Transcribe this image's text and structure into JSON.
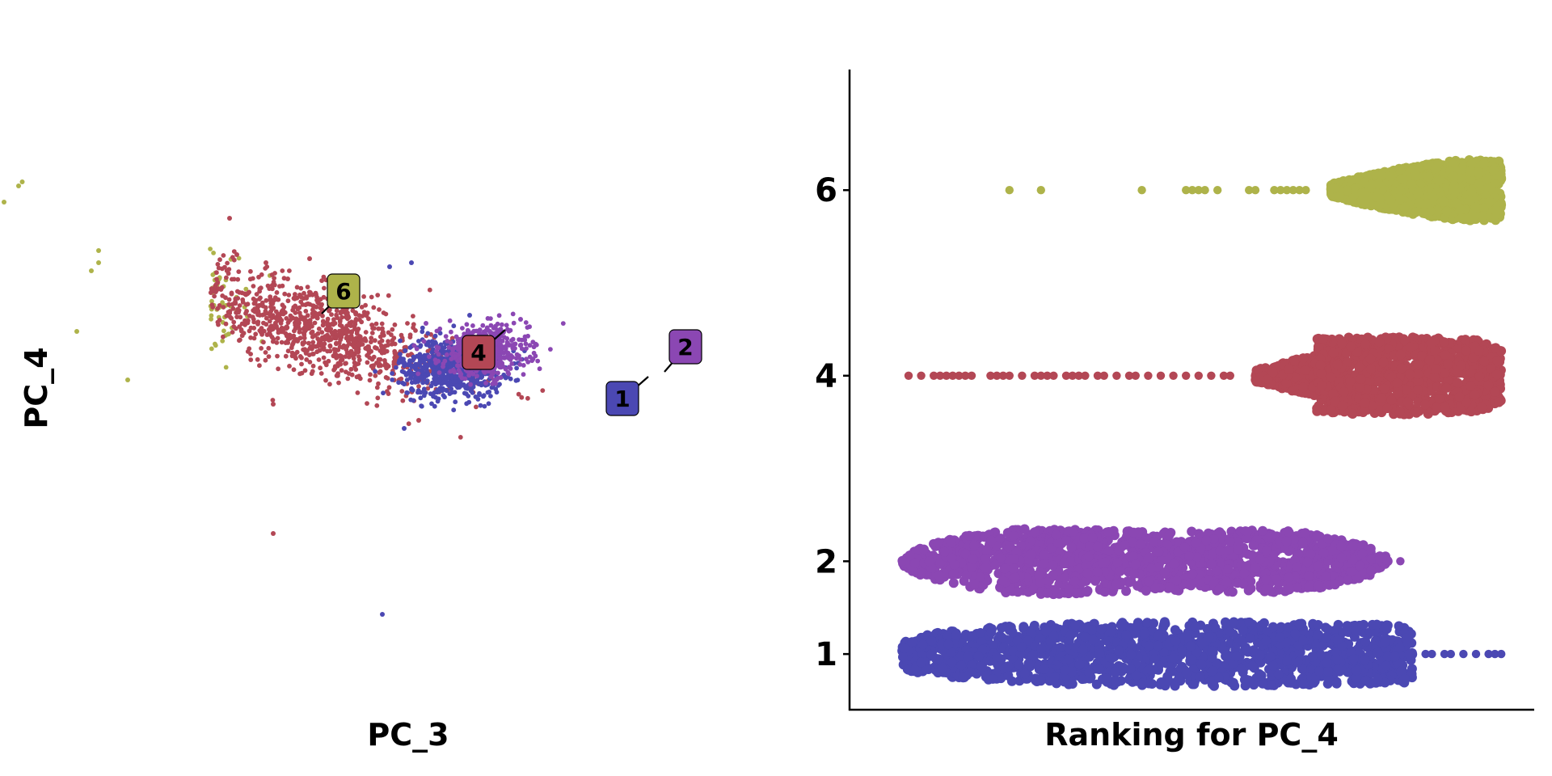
{
  "chart_data": [
    {
      "type": "scatter",
      "title": "",
      "xlabel": "PC_3",
      "ylabel": "PC_4",
      "axes_visible": false,
      "grid": false,
      "legend": "none",
      "series": [
        {
          "name": "6",
          "color": "#aeb34a",
          "label": "6",
          "n": 560,
          "center": [
            -3.35,
            0.95
          ],
          "spread": [
            0.5,
            0.33
          ],
          "outliers": [
            [
              -6.4,
              2.8
            ],
            [
              -5.7,
              2.2
            ],
            [
              -5.5,
              2.3
            ],
            [
              -5.3,
              2.5
            ],
            [
              -5.25,
              2.55
            ],
            [
              -4.2,
              1.7
            ],
            [
              -4.2,
              1.55
            ],
            [
              -4.3,
              1.45
            ],
            [
              -4.5,
              0.7
            ],
            [
              -3.8,
              0.1
            ]
          ]
        },
        {
          "name": "4",
          "color": "#b34755",
          "label": "4",
          "n": 1000,
          "center": [
            -1.3,
            0.75
          ],
          "spread": [
            1.0,
            0.27
          ],
          "outliers": [
            [
              -6.5,
              2.9
            ],
            [
              -2.4,
              2.1
            ],
            [
              -2.3,
              1.65
            ],
            [
              -1.9,
              1.55
            ],
            [
              -1.3,
              1.6
            ],
            [
              -1.6,
              1.35
            ],
            [
              -1.8,
              -0.2
            ],
            [
              -1.8,
              -1.8
            ],
            [
              -0.4,
              0.5
            ],
            [
              0.2,
              -0.4
            ]
          ]
        },
        {
          "name": "1",
          "color": "#4b48b3",
          "label": "1",
          "n": 700,
          "center": [
            0.65,
            0.25
          ],
          "spread": [
            0.35,
            0.18
          ],
          "outliers": [
            [
              -0.2,
              1.5
            ],
            [
              0.1,
              1.55
            ],
            [
              0.0,
              0.05
            ],
            [
              0.0,
              -0.5
            ],
            [
              0.2,
              0.15
            ],
            [
              0.9,
              0.9
            ],
            [
              -0.3,
              -2.8
            ]
          ]
        },
        {
          "name": "2",
          "color": "#8b47b3",
          "label": "2",
          "n": 520,
          "center": [
            1.1,
            0.45
          ],
          "spread": [
            0.3,
            0.16
          ],
          "outliers": [
            [
              1.6,
              0.85
            ],
            [
              0.3,
              0.8
            ]
          ]
        }
      ]
    },
    {
      "type": "scatter",
      "title": "",
      "xlabel": "Ranking for PC_4",
      "ylabel": "",
      "y_categories": [
        "1",
        "2",
        "4",
        "6"
      ],
      "y_ticks": [
        "1",
        "2",
        "4",
        "6"
      ],
      "ylim": [
        0.4,
        7.3
      ],
      "xlim": [
        0,
        1
      ],
      "x_ticks_shown": false,
      "grid": false,
      "legend": "none",
      "series": [
        {
          "name": "6",
          "color": "#aeb34a",
          "y": 6,
          "body_range": [
            0.72,
            0.99
          ],
          "max_halfwidth": 0.36,
          "sparse_x": [
            0.21,
            0.26,
            0.42,
            0.49,
            0.5,
            0.51,
            0.52,
            0.54,
            0.59,
            0.6,
            0.63,
            0.64,
            0.65,
            0.66,
            0.67,
            0.68
          ]
        },
        {
          "name": "4",
          "color": "#b34755",
          "y": 4,
          "body_range": [
            0.6,
            0.99
          ],
          "max_halfwidth": 0.42,
          "sparse_x": [
            0.05,
            0.07,
            0.09,
            0.1,
            0.11,
            0.12,
            0.13,
            0.14,
            0.15,
            0.18,
            0.19,
            0.2,
            0.21,
            0.23,
            0.25,
            0.26,
            0.27,
            0.28,
            0.3,
            0.31,
            0.32,
            0.33,
            0.35,
            0.36,
            0.38,
            0.4,
            0.41,
            0.43,
            0.45,
            0.47,
            0.49,
            0.51,
            0.53,
            0.55,
            0.56
          ]
        },
        {
          "name": "2",
          "color": "#8b47b3",
          "y": 2,
          "body_range": [
            0.04,
            0.81
          ],
          "max_halfwidth": 0.42,
          "sparse_x": [
            0.83
          ]
        },
        {
          "name": "1",
          "color": "#4b48b3",
          "y": 1,
          "body_range": [
            0.04,
            0.85
          ],
          "max_halfwidth": 0.42,
          "sparse_x": [
            0.87,
            0.88,
            0.9,
            0.91,
            0.93,
            0.95,
            0.97,
            0.98,
            0.99
          ]
        }
      ]
    }
  ]
}
